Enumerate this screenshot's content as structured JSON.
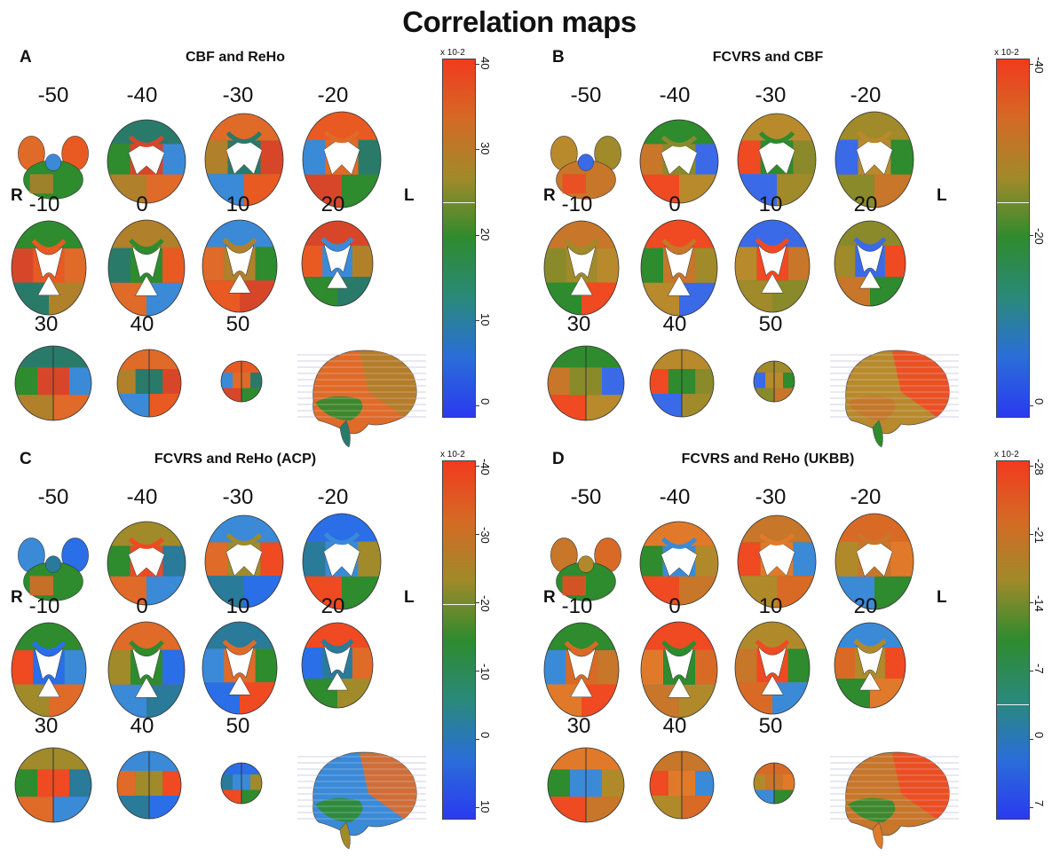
{
  "title": "Correlation maps",
  "side_labels": {
    "right": "R",
    "left": "L"
  },
  "slices": [
    "-50",
    "-40",
    "-30",
    "-20",
    "-10",
    "0",
    "10",
    "20",
    "30",
    "40",
    "50"
  ],
  "colors": {
    "red": "#f23a1e",
    "orange": "#e07a2a",
    "olive": "#a08a2a",
    "green": "#2e8b2e",
    "teal": "#2a8a7a",
    "blue": "#2a5ef0",
    "lightblue": "#3a8ad8"
  },
  "panels": [
    {
      "letter": "A",
      "title": "CBF and ReHo",
      "colorbar": {
        "unit": "x 10-2",
        "ticks": [
          "40",
          "30",
          "20",
          "10",
          "0"
        ],
        "stops": [
          "#f23a1e",
          "#d46a24",
          "#a08a2a",
          "#2e8b2e",
          "#2a8a7a",
          "#2a6ed8",
          "#2a3af0"
        ]
      },
      "palette": [
        "#e06a28",
        "#e85a22",
        "#2e8b2e",
        "#b0802a",
        "#3a8ad8",
        "#d8462a",
        "#2a7a6a"
      ]
    },
    {
      "letter": "B",
      "title": "FCVRS and CBF",
      "colorbar": {
        "unit": "x 10-2",
        "ticks": [
          "-40",
          "-20",
          "0"
        ],
        "stops": [
          "#f23a1e",
          "#d46a24",
          "#a08a2a",
          "#2e8b2e",
          "#2a8a7a",
          "#2a6ed8",
          "#2a3af0"
        ]
      },
      "palette": [
        "#b88a2c",
        "#a08a2a",
        "#c7762a",
        "#ef4a22",
        "#3a6ae8",
        "#8a8a2a",
        "#2e8b2e"
      ]
    },
    {
      "letter": "C",
      "title": "FCVRS and ReHo (ACP)",
      "colorbar": {
        "unit": "x 10-2",
        "ticks": [
          "-40",
          "-30",
          "-20",
          "-10",
          "0",
          "10"
        ],
        "stops": [
          "#f23a1e",
          "#d46a24",
          "#a08a2a",
          "#2e8b2e",
          "#2a8a7a",
          "#2a6ed8",
          "#2a3af0"
        ]
      },
      "palette": [
        "#3a8ad8",
        "#2a6ee8",
        "#2e8b2e",
        "#e06a28",
        "#2a7a9a",
        "#ef4a22",
        "#a08a2a"
      ]
    },
    {
      "letter": "D",
      "title": "FCVRS and ReHo (UKBB)",
      "colorbar": {
        "unit": "x 10-2",
        "ticks": [
          "-28",
          "-21",
          "-14",
          "-7",
          "0",
          "7"
        ],
        "stops": [
          "#f23a1e",
          "#d46a24",
          "#a08a2a",
          "#2e8b2e",
          "#2a8a7a",
          "#2a6ed8",
          "#2a3af0"
        ]
      },
      "palette": [
        "#c7762a",
        "#d86a26",
        "#2e8b2e",
        "#ef4a22",
        "#b08a2a",
        "#3a8ad8",
        "#e07a2a"
      ]
    }
  ]
}
